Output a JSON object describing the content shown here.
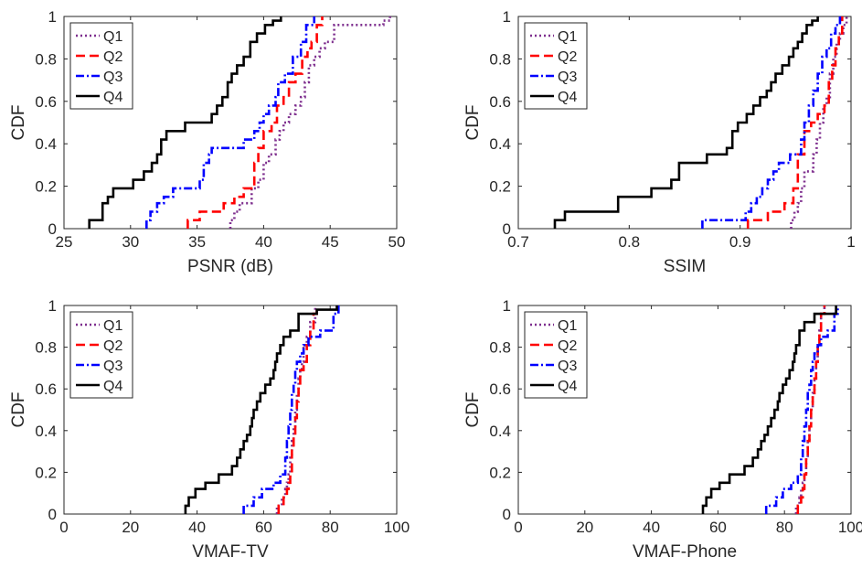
{
  "chart_data": [
    {
      "type": "line",
      "subtype": "cdf-step",
      "xlabel": "PSNR (dB)",
      "ylabel": "CDF",
      "xlim": [
        25,
        50
      ],
      "ylim": [
        0,
        1
      ],
      "xticks": [
        "25",
        "30",
        "35",
        "40",
        "45",
        "50"
      ],
      "yticks": [
        "0",
        "0.2",
        "0.4",
        "0.6",
        "0.8",
        "1"
      ],
      "legend_position": "top-left",
      "series": [
        {
          "name": "Q1",
          "color": "#7E2F8E",
          "dash": "dotted",
          "x": [
            37.5,
            37.8,
            38.2,
            39.1,
            39.6,
            40.0,
            40.4,
            40.9,
            41.2,
            41.5,
            41.9,
            42.4,
            42.8,
            43.1,
            43.4,
            43.8,
            44.2,
            44.6,
            45.3,
            49.0,
            49.5
          ],
          "y": [
            0.04,
            0.08,
            0.12,
            0.19,
            0.23,
            0.31,
            0.35,
            0.42,
            0.46,
            0.5,
            0.54,
            0.58,
            0.62,
            0.69,
            0.77,
            0.81,
            0.85,
            0.88,
            0.96,
            0.98,
            1.0
          ]
        },
        {
          "name": "Q2",
          "color": "#FF0000",
          "dash": "dashed",
          "x": [
            34.3,
            35.2,
            37.0,
            37.8,
            38.5,
            39.3,
            39.6,
            40.0,
            40.6,
            41.0,
            41.5,
            41.9,
            42.4,
            42.9,
            43.3,
            43.6,
            44.0,
            44.4
          ],
          "y": [
            0.04,
            0.08,
            0.12,
            0.15,
            0.19,
            0.31,
            0.38,
            0.46,
            0.5,
            0.58,
            0.62,
            0.69,
            0.73,
            0.81,
            0.85,
            0.88,
            0.96,
            1.0
          ]
        },
        {
          "name": "Q3",
          "color": "#0000FF",
          "dash": "dashdot",
          "x": [
            31.2,
            31.5,
            32.0,
            32.5,
            33.2,
            35.2,
            35.5,
            35.9,
            36.1,
            38.5,
            39.3,
            39.7,
            40.0,
            40.4,
            40.9,
            41.1,
            41.6,
            42.2,
            42.8,
            43.2,
            43.8
          ],
          "y": [
            0.04,
            0.08,
            0.12,
            0.15,
            0.19,
            0.23,
            0.31,
            0.35,
            0.38,
            0.42,
            0.46,
            0.5,
            0.54,
            0.58,
            0.62,
            0.69,
            0.73,
            0.81,
            0.88,
            0.96,
            1.0
          ]
        },
        {
          "name": "Q4",
          "color": "#000000",
          "dash": "solid",
          "x": [
            26.9,
            27.9,
            28.3,
            28.7,
            30.2,
            31.0,
            31.6,
            32.0,
            32.3,
            32.7,
            34.1,
            36.1,
            36.5,
            36.9,
            37.3,
            37.6,
            38.0,
            38.5,
            39.0,
            39.5,
            40.1,
            40.7,
            41.3
          ],
          "y": [
            0.04,
            0.12,
            0.15,
            0.19,
            0.23,
            0.27,
            0.31,
            0.35,
            0.42,
            0.46,
            0.5,
            0.54,
            0.58,
            0.62,
            0.69,
            0.73,
            0.77,
            0.81,
            0.88,
            0.92,
            0.96,
            0.98,
            1.0
          ]
        }
      ]
    },
    {
      "type": "line",
      "subtype": "cdf-step",
      "xlabel": "SSIM",
      "ylabel": "CDF",
      "xlim": [
        0.7,
        1.0
      ],
      "ylim": [
        0,
        1
      ],
      "xticks": [
        "0.7",
        "0.8",
        "0.9",
        "1"
      ],
      "yticks": [
        "0",
        "0.2",
        "0.4",
        "0.6",
        "0.8",
        "1"
      ],
      "legend_position": "top-left",
      "series": [
        {
          "name": "Q1",
          "color": "#7E2F8E",
          "dash": "dotted",
          "x": [
            0.946,
            0.949,
            0.952,
            0.955,
            0.958,
            0.966,
            0.969,
            0.972,
            0.975,
            0.978,
            0.981,
            0.984,
            0.987,
            0.99,
            0.993,
            0.996
          ],
          "y": [
            0.04,
            0.08,
            0.12,
            0.19,
            0.27,
            0.35,
            0.42,
            0.5,
            0.58,
            0.62,
            0.73,
            0.81,
            0.88,
            0.92,
            0.96,
            1.0
          ]
        },
        {
          "name": "Q2",
          "color": "#FF0000",
          "dash": "dashed",
          "x": [
            0.907,
            0.925,
            0.94,
            0.948,
            0.952,
            0.958,
            0.964,
            0.97,
            0.976,
            0.98,
            0.983,
            0.986,
            0.989,
            0.992
          ],
          "y": [
            0.04,
            0.08,
            0.12,
            0.19,
            0.35,
            0.46,
            0.5,
            0.54,
            0.58,
            0.69,
            0.77,
            0.85,
            0.92,
            1.0
          ]
        },
        {
          "name": "Q3",
          "color": "#0000FF",
          "dash": "dashdot",
          "x": [
            0.866,
            0.905,
            0.91,
            0.915,
            0.92,
            0.925,
            0.93,
            0.935,
            0.945,
            0.955,
            0.958,
            0.962,
            0.966,
            0.97,
            0.974,
            0.978,
            0.982,
            0.986,
            0.99
          ],
          "y": [
            0.04,
            0.08,
            0.12,
            0.15,
            0.19,
            0.23,
            0.27,
            0.31,
            0.35,
            0.42,
            0.5,
            0.58,
            0.65,
            0.73,
            0.81,
            0.85,
            0.92,
            0.96,
            1.0
          ]
        },
        {
          "name": "Q4",
          "color": "#000000",
          "dash": "solid",
          "x": [
            0.733,
            0.742,
            0.79,
            0.82,
            0.838,
            0.845,
            0.87,
            0.888,
            0.893,
            0.898,
            0.906,
            0.912,
            0.918,
            0.924,
            0.928,
            0.932,
            0.938,
            0.944,
            0.948,
            0.952,
            0.956,
            0.96,
            0.965,
            0.97
          ],
          "y": [
            0.04,
            0.08,
            0.15,
            0.19,
            0.23,
            0.31,
            0.35,
            0.38,
            0.46,
            0.5,
            0.54,
            0.58,
            0.62,
            0.65,
            0.69,
            0.73,
            0.77,
            0.81,
            0.85,
            0.88,
            0.92,
            0.96,
            0.98,
            1.0
          ]
        }
      ]
    },
    {
      "type": "line",
      "subtype": "cdf-step",
      "xlabel": "VMAF-TV",
      "ylabel": "CDF",
      "xlim": [
        0,
        100
      ],
      "ylim": [
        0,
        1
      ],
      "xticks": [
        "0",
        "20",
        "40",
        "60",
        "80",
        "100"
      ],
      "yticks": [
        "0",
        "0.2",
        "0.4",
        "0.6",
        "0.8",
        "1"
      ],
      "legend_position": "top-left",
      "series": [
        {
          "name": "Q1",
          "color": "#7E2F8E",
          "dash": "dotted",
          "x": [
            64.0,
            65.5,
            66.5,
            67.0,
            67.5,
            68.0,
            68.5,
            69.0,
            69.5,
            70.0,
            70.5,
            71.0,
            71.5,
            72.0,
            73.0,
            74.0,
            75.5
          ],
          "y": [
            0.04,
            0.08,
            0.12,
            0.15,
            0.19,
            0.27,
            0.35,
            0.42,
            0.5,
            0.58,
            0.65,
            0.69,
            0.73,
            0.81,
            0.85,
            0.92,
            1.0
          ]
        },
        {
          "name": "Q2",
          "color": "#FF0000",
          "dash": "dashed",
          "x": [
            64.5,
            66.0,
            67.0,
            67.5,
            68.0,
            68.5,
            69.0,
            69.5,
            70.0,
            70.5,
            71.0,
            72.0,
            73.0,
            74.0,
            75.0,
            76.0
          ],
          "y": [
            0.04,
            0.08,
            0.12,
            0.15,
            0.19,
            0.31,
            0.38,
            0.46,
            0.54,
            0.62,
            0.69,
            0.73,
            0.81,
            0.88,
            0.96,
            1.0
          ]
        },
        {
          "name": "Q3",
          "color": "#0000FF",
          "dash": "dashdot",
          "x": [
            54.0,
            57.0,
            59.5,
            63.0,
            65.0,
            66.5,
            67.0,
            67.5,
            68.0,
            68.5,
            69.0,
            69.5,
            70.0,
            71.0,
            72.0,
            73.5,
            77.0,
            81.0,
            82.5
          ],
          "y": [
            0.04,
            0.08,
            0.12,
            0.15,
            0.19,
            0.27,
            0.35,
            0.42,
            0.5,
            0.58,
            0.62,
            0.69,
            0.73,
            0.77,
            0.81,
            0.85,
            0.88,
            0.96,
            1.0
          ]
        },
        {
          "name": "Q4",
          "color": "#000000",
          "dash": "solid",
          "x": [
            36.5,
            37.5,
            39.5,
            42.5,
            46.5,
            50.5,
            52.0,
            53.0,
            54.0,
            55.0,
            56.0,
            56.5,
            57.0,
            58.0,
            59.0,
            60.5,
            62.0,
            63.0,
            63.5,
            64.0,
            65.0,
            66.0,
            68.0,
            70.5,
            76.0,
            82.0
          ],
          "y": [
            0.04,
            0.08,
            0.12,
            0.15,
            0.19,
            0.23,
            0.27,
            0.31,
            0.35,
            0.38,
            0.42,
            0.46,
            0.5,
            0.54,
            0.58,
            0.62,
            0.65,
            0.69,
            0.73,
            0.77,
            0.81,
            0.85,
            0.88,
            0.96,
            0.98,
            1.0
          ]
        }
      ]
    },
    {
      "type": "line",
      "subtype": "cdf-step",
      "xlabel": "VMAF-Phone",
      "ylabel": "CDF",
      "xlim": [
        0,
        100
      ],
      "ylim": [
        0,
        1
      ],
      "xticks": [
        "0",
        "20",
        "40",
        "60",
        "80",
        "100"
      ],
      "yticks": [
        "0",
        "0.2",
        "0.4",
        "0.6",
        "0.8",
        "1"
      ],
      "legend_position": "top-left",
      "series": [
        {
          "name": "Q1",
          "color": "#7E2F8E",
          "dash": "dotted",
          "x": [
            83.5,
            84.5,
            85.0,
            85.5,
            86.0,
            86.5,
            87.0,
            87.5,
            88.0,
            88.5,
            89.0,
            89.5,
            90.0,
            90.5,
            91.0,
            92.0
          ],
          "y": [
            0.04,
            0.08,
            0.12,
            0.15,
            0.19,
            0.27,
            0.35,
            0.42,
            0.5,
            0.58,
            0.65,
            0.73,
            0.81,
            0.88,
            0.96,
            1.0
          ]
        },
        {
          "name": "Q2",
          "color": "#FF0000",
          "dash": "dashed",
          "x": [
            84.0,
            85.0,
            85.5,
            86.0,
            86.5,
            87.0,
            87.5,
            88.0,
            88.5,
            89.0,
            89.5,
            90.0,
            90.5,
            91.0,
            92.0
          ],
          "y": [
            0.04,
            0.08,
            0.12,
            0.19,
            0.27,
            0.35,
            0.42,
            0.5,
            0.58,
            0.65,
            0.73,
            0.81,
            0.88,
            0.96,
            1.0
          ]
        },
        {
          "name": "Q3",
          "color": "#0000FF",
          "dash": "dashdot",
          "x": [
            74.5,
            77.5,
            79.5,
            82.0,
            84.0,
            85.0,
            85.5,
            86.0,
            86.5,
            87.0,
            87.5,
            88.0,
            88.5,
            89.0,
            90.0,
            91.0,
            93.0,
            95.0,
            96.0
          ],
          "y": [
            0.04,
            0.08,
            0.12,
            0.15,
            0.19,
            0.27,
            0.35,
            0.42,
            0.5,
            0.58,
            0.62,
            0.69,
            0.73,
            0.77,
            0.81,
            0.85,
            0.88,
            0.96,
            1.0
          ]
        },
        {
          "name": "Q4",
          "color": "#000000",
          "dash": "solid",
          "x": [
            55.5,
            56.5,
            58.0,
            60.5,
            63.5,
            68.0,
            70.5,
            72.0,
            73.0,
            74.0,
            75.0,
            76.0,
            77.0,
            78.0,
            78.5,
            79.5,
            80.5,
            81.5,
            82.5,
            83.0,
            83.5,
            84.5,
            86.0,
            89.0,
            95.5
          ],
          "y": [
            0.04,
            0.08,
            0.12,
            0.15,
            0.19,
            0.23,
            0.27,
            0.31,
            0.35,
            0.38,
            0.42,
            0.46,
            0.5,
            0.54,
            0.58,
            0.62,
            0.65,
            0.69,
            0.73,
            0.77,
            0.81,
            0.88,
            0.92,
            0.96,
            1.0
          ]
        }
      ]
    }
  ]
}
